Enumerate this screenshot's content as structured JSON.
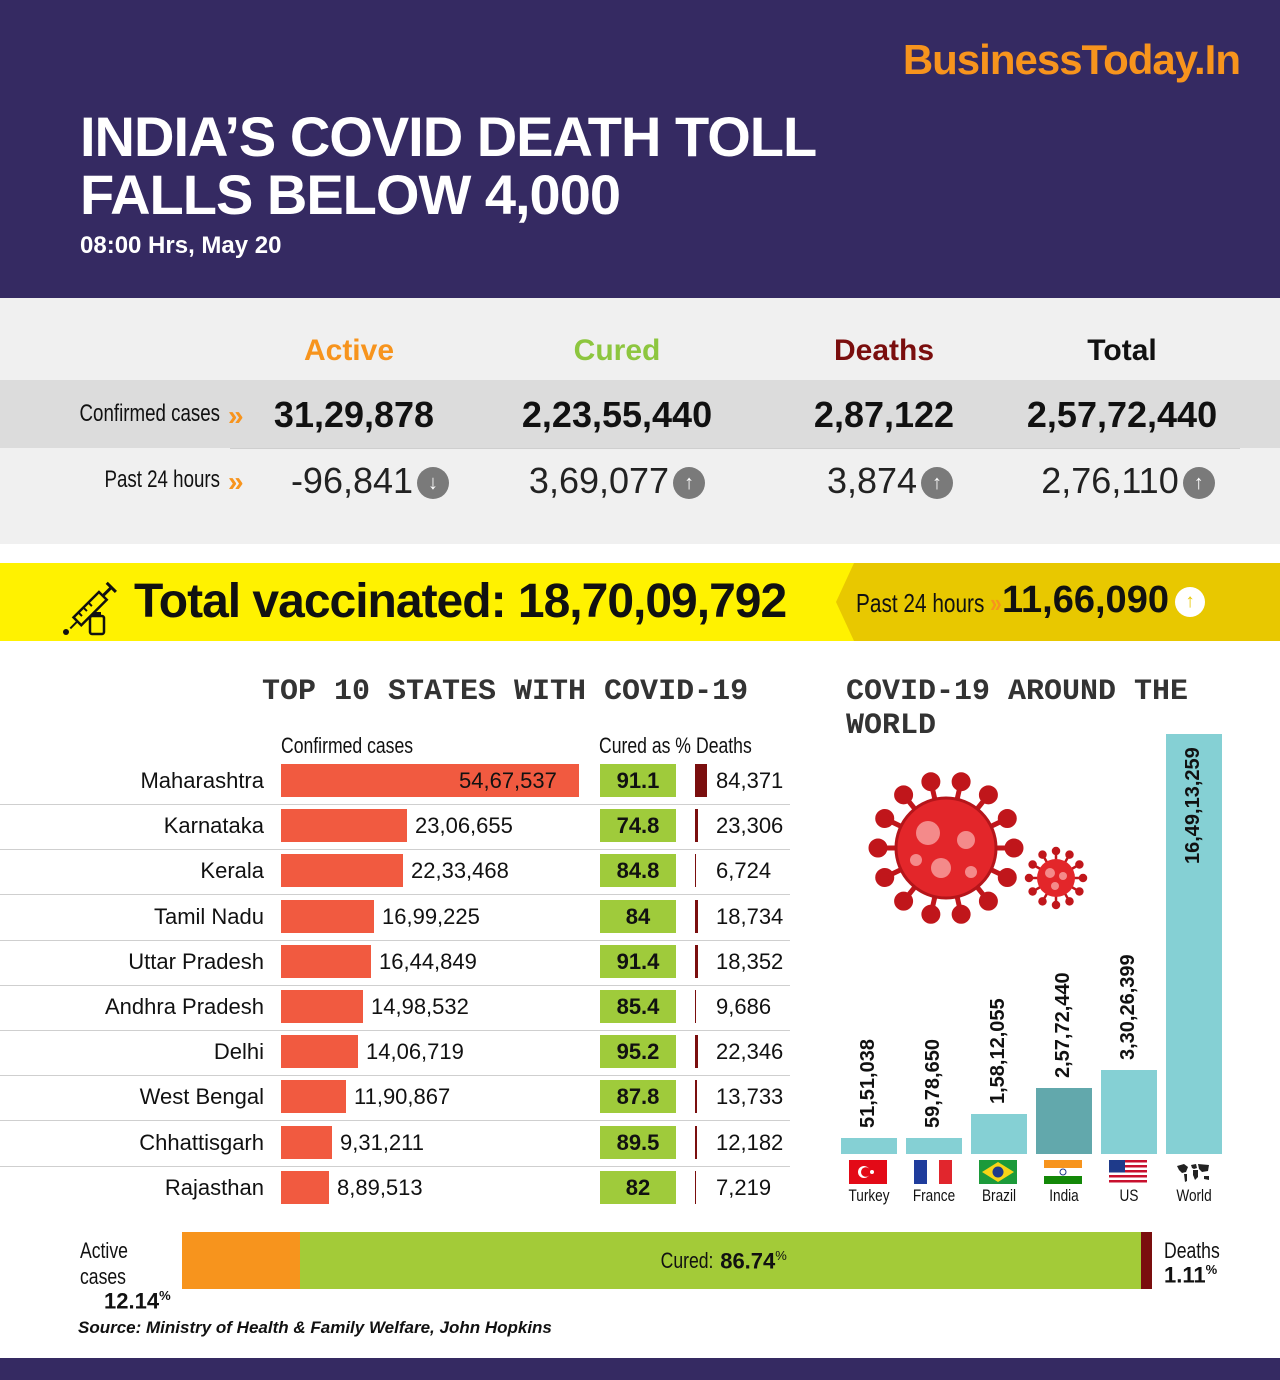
{
  "header": {
    "brand": "BusinessToday.In",
    "title": "INDIA’S COVID DEATH TOLL FALLS BELOW 4,000",
    "dateline": "08:00 Hrs, May 20"
  },
  "stats": {
    "columns": [
      "Active",
      "Cured",
      "Deaths",
      "Total"
    ],
    "column_colors": [
      "#f7941d",
      "#8dc63f",
      "#7a0e0e",
      "#111111"
    ],
    "confirmed_label": "Confirmed cases",
    "past24_label": "Past 24 hours",
    "chevron": "»",
    "confirmed": [
      "31,29,878",
      "2,23,55,440",
      "2,87,122",
      "2,57,72,440"
    ],
    "past24": [
      "-96,841",
      "3,69,077",
      "3,874",
      "2,76,110"
    ],
    "past24_dir": [
      "down",
      "up",
      "up",
      "up"
    ]
  },
  "vaccination": {
    "label": "Total vaccinated:",
    "total": "18,70,09,792",
    "past24_label": "Past 24 hours",
    "past24_value": "11,66,090",
    "icon": "syringe-icon"
  },
  "chart_data": [
    {
      "type": "bar",
      "title": "TOP 10 STATES WITH COVID-19",
      "columns": [
        "Confirmed cases",
        "Cured as %",
        "Deaths"
      ],
      "categories": [
        "Maharashtra",
        "Karnataka",
        "Kerala",
        "Tamil Nadu",
        "Uttar Pradesh",
        "Andhra Pradesh",
        "Delhi",
        "West Bengal",
        "Chhattisgarh",
        "Rajasthan"
      ],
      "confirmed": [
        5467537,
        2306655,
        2233468,
        1699225,
        1644849,
        1498532,
        1406719,
        1190867,
        931211,
        889513
      ],
      "confirmed_labels": [
        "54,67,537",
        "23,06,655",
        "22,33,468",
        "16,99,225",
        "16,44,849",
        "14,98,532",
        "14,06,719",
        "11,90,867",
        "9,31,211",
        "8,89,513"
      ],
      "cured_pct": [
        "91.1",
        "74.8",
        "84.8",
        "84",
        "91.4",
        "85.4",
        "95.2",
        "87.8",
        "89.5",
        "82"
      ],
      "deaths": [
        84371,
        23306,
        6724,
        18734,
        18352,
        9686,
        22346,
        13733,
        12182,
        7219
      ],
      "death_labels": [
        "84,371",
        "23,306",
        "6,724",
        "18,734",
        "18,352",
        "9,686",
        "22,346",
        "13,733",
        "12,182",
        "7,219"
      ]
    },
    {
      "type": "bar",
      "title": "COVID-19 AROUND THE WORLD",
      "categories": [
        "Turkey",
        "France",
        "Brazil",
        "India",
        "US",
        "World"
      ],
      "values": [
        5151038,
        5978650,
        15812055,
        25772440,
        33026399,
        164913259
      ],
      "value_labels": [
        "51,51,038",
        "59,78,650",
        "1,58,12,055",
        "2,57,72,440",
        "3,30,26,399",
        "16,49,13,259"
      ],
      "bar_color": "#85d0d4",
      "highlight": "India",
      "highlight_color": "#62a8ac"
    },
    {
      "type": "bar",
      "title": "",
      "stacked_share": [
        12.14,
        86.74,
        1.11
      ],
      "segments": [
        {
          "name": "Active cases",
          "value": "12.14",
          "color": "#f7941d"
        },
        {
          "name": "Cured:",
          "value": "86.74",
          "color": "#a3cb38"
        },
        {
          "name": "Deaths",
          "value": "1.11",
          "color": "#7a0e0e"
        }
      ],
      "unit": "%"
    }
  ],
  "footer": {
    "source": "Source: Ministry of Health & Family Welfare, John Hopkins"
  }
}
